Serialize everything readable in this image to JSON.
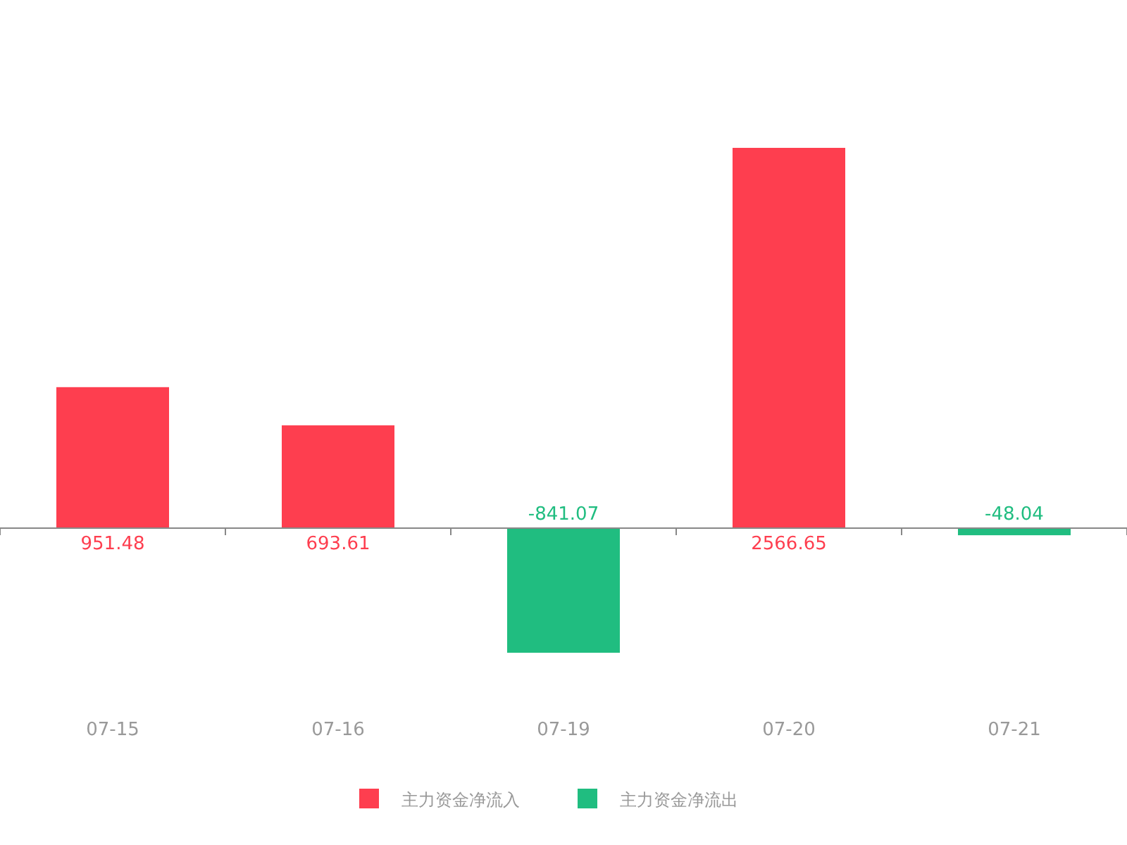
{
  "chart_data": {
    "type": "bar",
    "categories": [
      "07-15",
      "07-16",
      "07-19",
      "07-20",
      "07-21"
    ],
    "series": [
      {
        "name": "主力资金净流入",
        "color": "#fe3e4f",
        "values": [
          951.48,
          693.61,
          null,
          2566.65,
          null
        ]
      },
      {
        "name": "主力资金净流出",
        "color": "#20bd80",
        "values": [
          null,
          null,
          -841.07,
          null,
          -48.04
        ]
      }
    ],
    "data_labels": true,
    "legend": "bottom",
    "tick_labels": "x"
  }
}
